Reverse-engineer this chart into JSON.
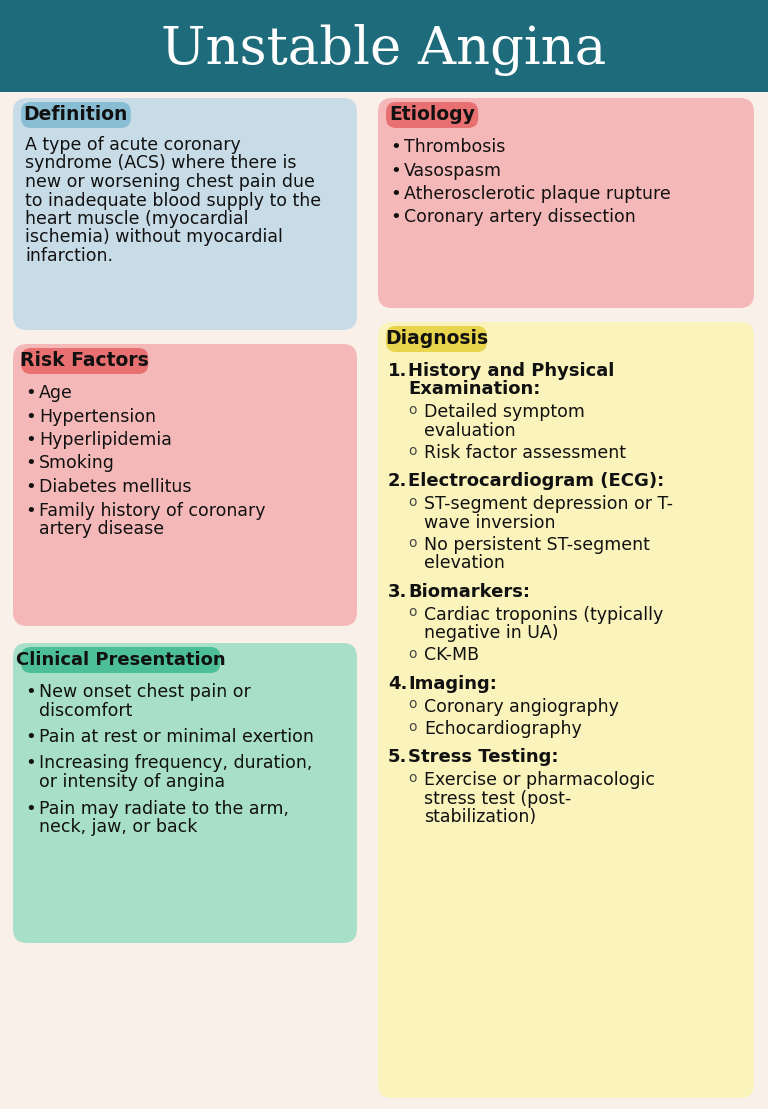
{
  "title": "Unstable Angina",
  "title_bg": "#1e6b7b",
  "title_color": "#ffffff",
  "bg_color": "#faf0ea",
  "definition_label": "Definition",
  "definition_label_bg": "#89bdd3",
  "definition_label_color": "#111111",
  "definition_box_bg": "#c8dce8",
  "definition_text": [
    "A type of acute coronary",
    "syndrome (ACS) where there is",
    "new or worsening chest pain due",
    "to inadequate blood supply to the",
    "heart muscle (myocardial",
    "ischemia) without myocardial",
    "infarction."
  ],
  "etiology_label": "Etiology",
  "etiology_label_bg": "#e87070",
  "etiology_label_color": "#111111",
  "etiology_box_bg": "#f5b8b8",
  "etiology_items": [
    "Thrombosis",
    "Vasospasm",
    "Atherosclerotic plaque rupture",
    "Coronary artery dissection"
  ],
  "risk_label": "Risk Factors",
  "risk_label_bg": "#e87070",
  "risk_label_color": "#111111",
  "risk_box_bg": "#f5b8b8",
  "risk_items": [
    "Age",
    "Hypertension",
    "Hyperlipidemia",
    "Smoking",
    "Diabetes mellitus",
    "Family history of coronary\nartery disease"
  ],
  "clinical_label": "Clinical Presentation",
  "clinical_label_bg": "#4dbf98",
  "clinical_label_color": "#111111",
  "clinical_box_bg": "#a8dfc8",
  "clinical_items": [
    [
      "New onset chest pain or",
      "discomfort"
    ],
    [
      "Pain at rest or minimal exertion"
    ],
    [
      "Increasing frequency, duration,",
      "or intensity of angina"
    ],
    [
      "Pain may radiate to the arm,",
      "neck, jaw, or back"
    ]
  ],
  "diagnosis_label": "Diagnosis",
  "diagnosis_label_bg": "#e8d44d",
  "diagnosis_label_color": "#111111",
  "diagnosis_box_bg": "#faf3bb",
  "diagnosis_items": [
    {
      "num": "1.",
      "head": [
        "History and Physical",
        "Examination:"
      ],
      "subs": [
        [
          "Detailed symptom",
          "evaluation"
        ],
        [
          "Risk factor assessment"
        ]
      ]
    },
    {
      "num": "2.",
      "head": [
        "Electrocardiogram (ECG):"
      ],
      "subs": [
        [
          "ST-segment depression or T-",
          "wave inversion"
        ],
        [
          "No persistent ST-segment",
          "elevation"
        ]
      ]
    },
    {
      "num": "3.",
      "head": [
        "Biomarkers:"
      ],
      "subs": [
        [
          "Cardiac troponins (typically",
          "negative in UA)"
        ],
        [
          "CK-MB"
        ]
      ]
    },
    {
      "num": "4.",
      "head": [
        "Imaging:"
      ],
      "subs": [
        [
          "Coronary angiography"
        ],
        [
          "Echocardiography"
        ]
      ]
    },
    {
      "num": "5.",
      "head": [
        "Stress Testing:"
      ],
      "subs": [
        [
          "Exercise or pharmacologic",
          "stress test (post-",
          "stabilization)"
        ]
      ]
    }
  ]
}
